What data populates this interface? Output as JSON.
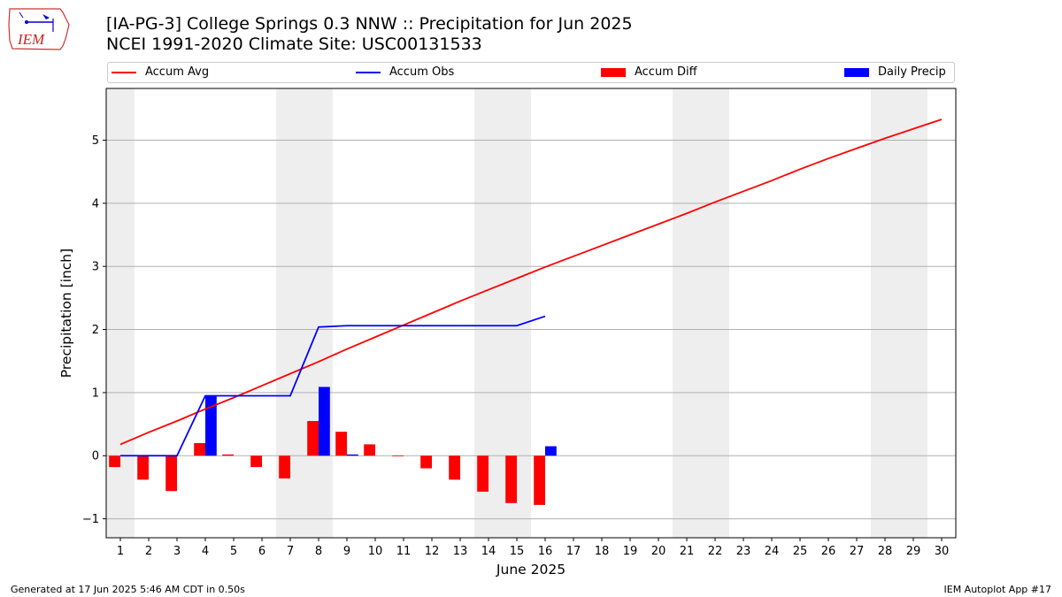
{
  "title_line1": "[IA-PG-3] College Springs 0.3 NNW :: Precipitation for Jun 2025",
  "title_line2": "NCEI 1991-2020 Climate Site: USC00131533",
  "logo_text": "IEM",
  "footer_left": "Generated at 17 Jun 2025 5:46 AM CDT in 0.50s",
  "footer_right": "IEM Autoplot App #17",
  "colors": {
    "avg": "#ff0000",
    "obs": "#0000ff",
    "diff": "#ff0000",
    "daily": "#0000ff",
    "weekend": "#eeeeee",
    "grid": "#b0b0b0"
  },
  "legend": [
    {
      "label": "Accum Avg",
      "kind": "line",
      "color": "#ff0000"
    },
    {
      "label": "Accum Obs",
      "kind": "line",
      "color": "#0000ff"
    },
    {
      "label": "Accum Diff",
      "kind": "patch",
      "color": "#ff0000"
    },
    {
      "label": "Daily Precip",
      "kind": "patch",
      "color": "#0000ff"
    }
  ],
  "chart_data": {
    "type": "bar",
    "title": "[IA-PG-3] College Springs 0.3 NNW :: Precipitation for Jun 2025",
    "subtitle": "NCEI 1991-2020 Climate Site: USC00131533",
    "xlabel": "June 2025",
    "ylabel": "Precipitation [inch]",
    "xlim": [
      0.5,
      30.5
    ],
    "ylim": [
      -1.3,
      5.82
    ],
    "x_ticks": [
      1,
      2,
      3,
      4,
      5,
      6,
      7,
      8,
      9,
      10,
      11,
      12,
      13,
      14,
      15,
      16,
      17,
      18,
      19,
      20,
      21,
      22,
      23,
      24,
      25,
      26,
      27,
      28,
      29,
      30
    ],
    "y_ticks": [
      -1,
      0,
      1,
      2,
      3,
      4,
      5
    ],
    "grid": "horizontal",
    "legend_position": "top",
    "weekend_bands": [
      [
        0.5,
        1.5
      ],
      [
        6.5,
        8.5
      ],
      [
        13.5,
        15.5
      ],
      [
        20.5,
        22.5
      ],
      [
        27.5,
        29.5
      ]
    ],
    "series": [
      {
        "name": "Accum Avg",
        "type": "line",
        "x": [
          1,
          2,
          3,
          4,
          5,
          6,
          7,
          8,
          9,
          10,
          11,
          12,
          13,
          14,
          15,
          16,
          17,
          18,
          19,
          20,
          21,
          22,
          23,
          24,
          25,
          26,
          27,
          28,
          29,
          30
        ],
        "values": [
          0.18,
          0.37,
          0.55,
          0.74,
          0.92,
          1.11,
          1.3,
          1.49,
          1.69,
          1.88,
          2.07,
          2.26,
          2.45,
          2.63,
          2.81,
          2.99,
          3.16,
          3.33,
          3.5,
          3.67,
          3.84,
          4.02,
          4.19,
          4.36,
          4.54,
          4.71,
          4.87,
          5.03,
          5.18,
          5.33
        ]
      },
      {
        "name": "Accum Obs",
        "type": "line",
        "x": [
          1,
          2,
          3,
          4,
          5,
          6,
          7,
          8,
          9,
          10,
          11,
          12,
          13,
          14,
          15,
          16
        ],
        "values": [
          0.0,
          0.0,
          0.0,
          0.95,
          0.95,
          0.95,
          0.95,
          2.04,
          2.06,
          2.06,
          2.06,
          2.06,
          2.06,
          2.06,
          2.06,
          2.21
        ]
      },
      {
        "name": "Accum Diff",
        "type": "bar",
        "x": [
          1,
          2,
          3,
          4,
          5,
          6,
          7,
          8,
          9,
          10,
          11,
          12,
          13,
          14,
          15,
          16
        ],
        "values": [
          -0.18,
          -0.38,
          -0.56,
          0.2,
          0.02,
          -0.18,
          -0.36,
          0.55,
          0.38,
          0.18,
          -0.01,
          -0.2,
          -0.38,
          -0.57,
          -0.75,
          -0.78
        ]
      },
      {
        "name": "Daily Precip",
        "type": "bar",
        "x": [
          1,
          2,
          3,
          4,
          5,
          6,
          7,
          8,
          9,
          10,
          11,
          12,
          13,
          14,
          15,
          16
        ],
        "values": [
          0,
          0,
          0,
          0.95,
          0,
          0,
          0,
          1.09,
          0.02,
          0,
          0,
          0,
          0,
          0,
          0,
          0.15
        ]
      }
    ]
  }
}
